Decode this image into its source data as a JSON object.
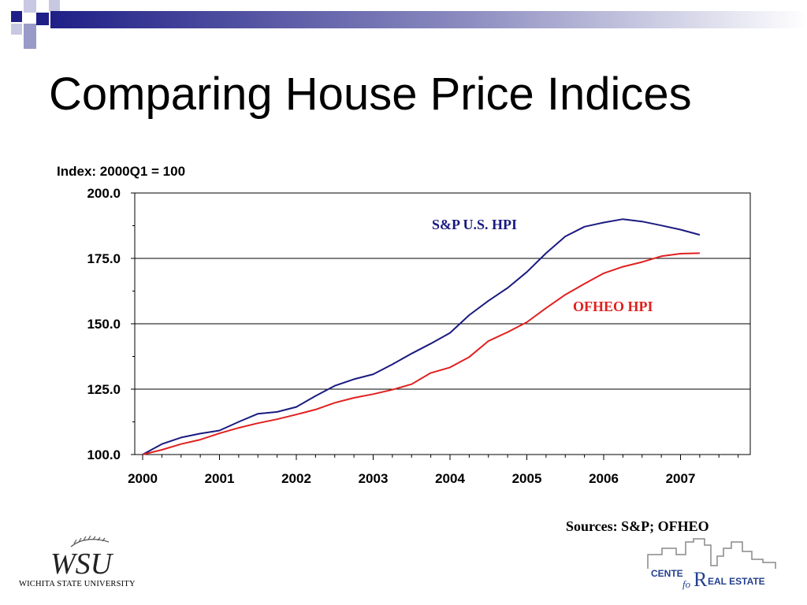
{
  "slide": {
    "title": "Comparing House Price Indices",
    "sources": "Sources: S&P; OFHEO"
  },
  "logos": {
    "wsu_mark": "WSU",
    "wsu_name": "WICHITA STATE UNIVERSITY",
    "center_text": "CENTE",
    "center_for": "fo",
    "center_r": "R",
    "center_real_estate": "EAL ESTATE"
  },
  "colors": {
    "sp_line": "#1a1a80",
    "ofheo_line": "#e0201e",
    "sp_label": "#1a1a80",
    "ofheo_label": "#e0201e",
    "accent_squares": "#1f1f87",
    "accent_light": "#9a9ac8"
  },
  "chart_data": {
    "type": "line",
    "ylabel": "Index:  2000Q1 = 100",
    "ylim": [
      100,
      200
    ],
    "y_ticks": [
      "100.0",
      "125.0",
      "150.0",
      "175.0",
      "200.0"
    ],
    "x_ticks": [
      "2000",
      "2001",
      "2002",
      "2003",
      "2004",
      "2005",
      "2006",
      "2007"
    ],
    "gridlines": "horizontal",
    "x": [
      "2000Q1",
      "2000Q2",
      "2000Q3",
      "2000Q4",
      "2001Q1",
      "2001Q2",
      "2001Q3",
      "2001Q4",
      "2002Q1",
      "2002Q2",
      "2002Q3",
      "2002Q4",
      "2003Q1",
      "2003Q2",
      "2003Q3",
      "2003Q4",
      "2004Q1",
      "2004Q2",
      "2004Q3",
      "2004Q4",
      "2005Q1",
      "2005Q2",
      "2005Q3",
      "2005Q4",
      "2006Q1",
      "2006Q2",
      "2006Q3",
      "2006Q4",
      "2007Q1",
      "2007Q2"
    ],
    "series": [
      {
        "name": "S&P U.S. HPI",
        "values": [
          100.0,
          104.0,
          106.5,
          108.0,
          109.2,
          112.5,
          115.6,
          116.3,
          118.2,
          122.4,
          126.3,
          128.8,
          130.7,
          134.5,
          138.6,
          142.4,
          146.5,
          153.3,
          158.8,
          163.7,
          169.8,
          177.0,
          183.4,
          187.1,
          188.7,
          190.0,
          189.1,
          187.6,
          186.0,
          184.0
        ]
      },
      {
        "name": "OFHEO HPI",
        "values": [
          100.0,
          101.8,
          104.0,
          105.7,
          108.1,
          110.2,
          112.0,
          113.5,
          115.3,
          117.2,
          119.8,
          121.7,
          123.1,
          124.8,
          126.9,
          131.2,
          133.3,
          137.3,
          143.4,
          146.8,
          150.6,
          156.0,
          161.1,
          165.3,
          169.3,
          171.8,
          173.6,
          175.8,
          176.8,
          177.0
        ]
      }
    ]
  }
}
